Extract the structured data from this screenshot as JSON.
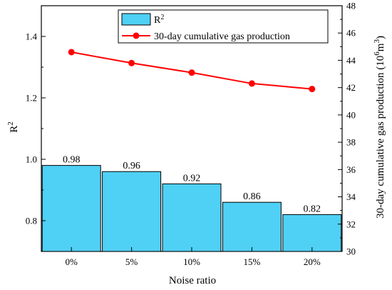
{
  "chart_data": {
    "type": "bar+line",
    "categories": [
      "0%",
      "5%",
      "10%",
      "15%",
      "20%"
    ],
    "xlabel": "Noise ratio",
    "ylabel_left": "R",
    "ylabel_left_sup": "2",
    "ylabel_right": "30-day cumulative gas production (10",
    "ylabel_right_sup1": "6",
    "ylabel_right_mid": "m",
    "ylabel_right_sup2": "3",
    "ylabel_right_end": ")",
    "ylim_left": [
      0.7,
      1.5
    ],
    "yticks_left": [
      "0.8",
      "1.0",
      "1.2",
      "1.4"
    ],
    "ylim_right": [
      30,
      48
    ],
    "yticks_right": [
      "30",
      "32",
      "34",
      "36",
      "38",
      "40",
      "42",
      "44",
      "46",
      "48"
    ],
    "bar_series": {
      "name": "R",
      "name_sup": "2",
      "values": [
        0.98,
        0.96,
        0.92,
        0.86,
        0.82
      ],
      "labels": [
        "0.98",
        "0.96",
        "0.92",
        "0.86",
        "0.82"
      ],
      "color": "#4fd0f5"
    },
    "line_series": {
      "name": "30-day cumulative gas production",
      "values": [
        44.6,
        43.8,
        43.1,
        42.3,
        41.9
      ],
      "color": "#ff0000"
    },
    "legend_position": "top-center",
    "grid": false
  }
}
